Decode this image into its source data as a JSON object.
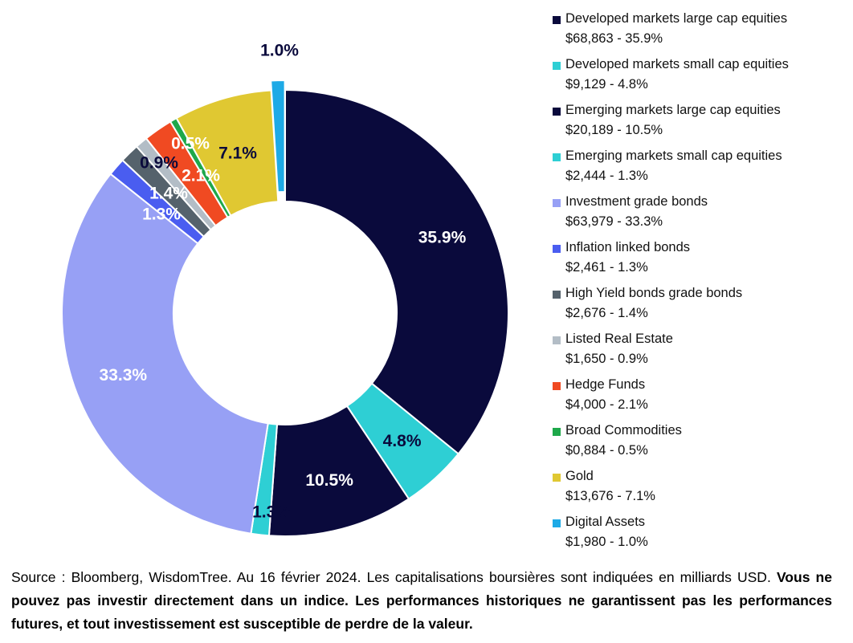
{
  "chart_data": {
    "type": "donut",
    "series": [
      {
        "name": "Developed markets large cap equities",
        "value_label": "$68,863 - 35.9%",
        "percent": 35.9,
        "label": "35.9%",
        "color": "#0a0a3c",
        "label_color": "#ffffff"
      },
      {
        "name": "Developed markets small cap equities",
        "value_label": "$9,129 - 4.8%",
        "percent": 4.8,
        "label": "4.8%",
        "color": "#2ecfd4",
        "label_color": "#0a0a3c"
      },
      {
        "name": "Emerging markets large cap equities",
        "value_label": "$20,189 - 10.5%",
        "percent": 10.5,
        "label": "10.5%",
        "color": "#0a0a3c",
        "label_color": "#ffffff"
      },
      {
        "name": "Emerging markets small cap equities",
        "value_label": "$2,444 - 1.3%",
        "percent": 1.3,
        "label": "1.3%",
        "color": "#2ecfd4",
        "label_color": "#0a0a3c"
      },
      {
        "name": "Investment grade bonds",
        "value_label": "$63,979 - 33.3%",
        "percent": 33.3,
        "label": "33.3%",
        "color": "#97a0f5",
        "label_color": "#ffffff"
      },
      {
        "name": "Inflation linked bonds",
        "value_label": "$2,461 - 1.3%",
        "percent": 1.3,
        "label": "1.3%",
        "color": "#4a5df0",
        "label_color": "#ffffff"
      },
      {
        "name": "High Yield bonds grade bonds",
        "value_label": "$2,676 - 1.4%",
        "percent": 1.4,
        "label": "1.4%",
        "color": "#55626c",
        "label_color": "#ffffff"
      },
      {
        "name": "Listed Real Estate",
        "value_label": "$1,650 - 0.9%",
        "percent": 0.9,
        "label": "0.9%",
        "color": "#b3bdc6",
        "label_color": "#0a0a3c"
      },
      {
        "name": "Hedge Funds",
        "value_label": "$4,000 - 2.1%",
        "percent": 2.1,
        "label": "2.1%",
        "color": "#f04a22",
        "label_color": "#ffffff"
      },
      {
        "name": "Broad Commodities",
        "value_label": "$0,884 - 0.5%",
        "percent": 0.5,
        "label": "0.5%",
        "color": "#1ea84a",
        "label_color": "#ffffff"
      },
      {
        "name": "Gold",
        "value_label": "$13,676 - 7.1%",
        "percent": 7.1,
        "label": "7.1%",
        "color": "#e0c832",
        "label_color": "#0a0a3c"
      },
      {
        "name": "Digital Assets",
        "value_label": "$1,980 - 1.0%",
        "percent": 1.0,
        "label": "1.0%",
        "color": "#1eaae6",
        "label_color": "#0a0a3c"
      }
    ],
    "legend_position": "right",
    "exploded_slice": "Digital Assets"
  },
  "footnote": {
    "plain": "Source : Bloomberg, WisdomTree. Au 16 février 2024. Les capitalisations boursières sont indiquées en milliards USD. ",
    "bold": "Vous ne pouvez pas investir directement dans un indice. Les performances historiques ne garantissent pas les performances futures, et tout investissement est susceptible de perdre de la valeur."
  }
}
